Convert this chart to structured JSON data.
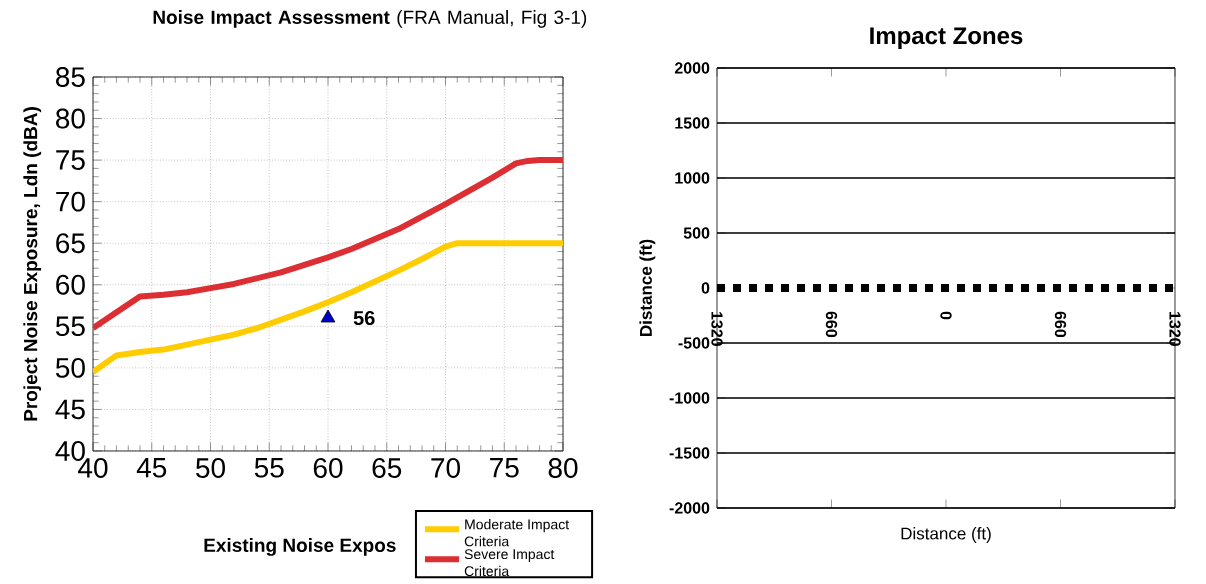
{
  "chart_data": [
    {
      "type": "line",
      "title": "**Noise Impact Assessment** (FRA Manual, Fig 3-1)",
      "xlabel": "Existing Noise Expos",
      "ylabel": "Project Noise Exposure, Ldn (dBA)",
      "xlim": [
        40,
        80
      ],
      "ylim": [
        40,
        85
      ],
      "xticks": [
        40,
        45,
        50,
        55,
        60,
        65,
        70,
        75,
        80
      ],
      "yticks": [
        40,
        45,
        50,
        55,
        60,
        65,
        70,
        75,
        80,
        85
      ],
      "grid": true,
      "legend": "bottom right",
      "series": [
        {
          "name": "Moderate Impact Criteria",
          "color": "#ffcc00",
          "x": [
            40,
            42,
            44,
            46,
            48,
            50,
            52,
            54,
            56,
            58,
            60,
            62,
            64,
            66,
            68,
            70,
            71,
            80
          ],
          "values": [
            49.5,
            51.5,
            51.9,
            52.2,
            52.8,
            53.4,
            54,
            54.8,
            55.8,
            56.8,
            57.9,
            59.1,
            60.4,
            61.7,
            63.1,
            64.6,
            65,
            65
          ]
        },
        {
          "name": "Severe Impact Criteria",
          "color": "#dc2f34",
          "x": [
            40,
            42,
            44,
            46,
            48,
            50,
            52,
            54,
            56,
            58,
            60,
            62,
            64,
            66,
            68,
            70,
            72,
            74,
            76,
            77,
            78,
            80
          ],
          "values": [
            54.8,
            56.7,
            58.6,
            58.8,
            59.1,
            59.6,
            60.1,
            60.8,
            61.5,
            62.4,
            63.3,
            64.3,
            65.5,
            66.7,
            68.2,
            69.7,
            71.3,
            72.9,
            74.6,
            74.9,
            75,
            75
          ]
        },
        {
          "type": "scatter",
          "color": "#0000cc",
          "marker": "triangle",
          "x": [
            60
          ],
          "values": [
            56
          ],
          "value_labels": [
            "56"
          ]
        }
      ]
    },
    {
      "type": "line",
      "title": "Impact Zones",
      "xlabel": "Distance (ft)",
      "ylabel": "Distance (ft)",
      "xlim": [
        -1320,
        1320
      ],
      "ylim": [
        -2000,
        2000
      ],
      "xticks": [
        {
          "value": -1320,
          "label": "1320"
        },
        {
          "value": -660,
          "label": "660"
        },
        0,
        {
          "value": 660,
          "label": "660"
        },
        1320
      ],
      "yticks": [
        -2000,
        -1500,
        -1000,
        -500,
        0,
        500,
        1000,
        1500,
        2000
      ],
      "grid": "y",
      "series": [
        {
          "color": "#000000",
          "line_style": "dashed",
          "x": [
            -1320,
            1320
          ],
          "values": [
            0,
            0
          ]
        }
      ]
    }
  ]
}
